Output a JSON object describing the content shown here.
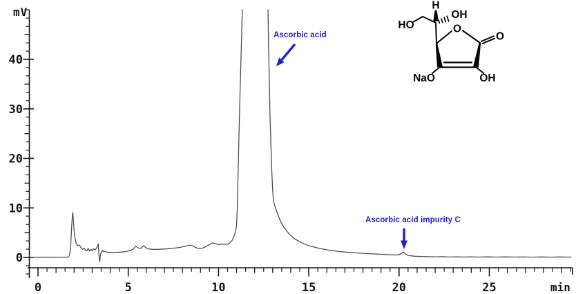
{
  "axes": {
    "y_unit": "mV",
    "x_unit": "min",
    "y_major_tick_labels": [
      "0",
      "10",
      "20",
      "30",
      "40"
    ],
    "x_major_tick_labels": [
      "0",
      "5",
      "10",
      "15",
      "20",
      "25"
    ]
  },
  "annotations": [
    {
      "text": "Ascorbic acid",
      "points_to_min": 12.9
    },
    {
      "text": "Ascorbic acid impurity C",
      "points_to_min": 20.2
    }
  ],
  "molecule": {
    "name": "sodium ascorbate",
    "labels": {
      "ho": "HO",
      "h": "H",
      "oh_top": "OH",
      "o_ring": "O",
      "o_carbonyl": "O",
      "nao": "NaO",
      "oh_bottom": "OH"
    }
  },
  "colors": {
    "annotation_blue": "#2020c8",
    "trace": "#4d4d4d",
    "axis": "#161616",
    "structure": "#050505",
    "background": "#ffffff"
  },
  "chart_data": {
    "type": "line",
    "title": "",
    "xlabel": "min",
    "ylabel": "mV",
    "x_range_min": [
      0,
      29.5
    ],
    "y_range_mV": [
      -3.3,
      50
    ],
    "x_minor_tick_step_min": 0.5,
    "y_labeled_tick_step_mV": 10,
    "grid": false,
    "legend": null,
    "peaks": [
      {
        "name": "Ascorbic acid",
        "retention_min": 12.0,
        "apex_mV": "off-scale (>50, clipped)"
      },
      {
        "name": "Ascorbic acid impurity C",
        "retention_min": 20.2,
        "apex_mV": 1.1
      },
      {
        "name": "unlabeled front peak",
        "retention_min": 1.9,
        "apex_mV": 9.0
      }
    ],
    "series": [
      {
        "name": "detector-signal",
        "units": {
          "x": "min",
          "y": "mV"
        },
        "points": [
          [
            -0.42,
            0.03
          ],
          [
            0.3,
            0.05
          ],
          [
            0.8,
            0.03
          ],
          [
            1.3,
            0.06
          ],
          [
            1.62,
            0.05
          ],
          [
            1.7,
            0.15
          ],
          [
            1.76,
            0.7
          ],
          [
            1.81,
            2.2
          ],
          [
            1.86,
            5.8
          ],
          [
            1.9,
            8.3
          ],
          [
            1.93,
            9.05
          ],
          [
            1.96,
            7.6
          ],
          [
            2.0,
            5.4
          ],
          [
            2.05,
            3.8
          ],
          [
            2.11,
            2.9
          ],
          [
            2.18,
            2.35
          ],
          [
            2.26,
            2.5
          ],
          [
            2.32,
            2.35
          ],
          [
            2.4,
            1.9
          ],
          [
            2.48,
            1.6
          ],
          [
            2.56,
            1.9
          ],
          [
            2.63,
            1.5
          ],
          [
            2.71,
            1.35
          ],
          [
            2.78,
            1.8
          ],
          [
            2.86,
            1.3
          ],
          [
            2.93,
            1.65
          ],
          [
            3.0,
            1.35
          ],
          [
            3.08,
            1.75
          ],
          [
            3.16,
            1.5
          ],
          [
            3.24,
            1.85
          ],
          [
            3.3,
            2.3
          ],
          [
            3.34,
            2.75
          ],
          [
            3.38,
            0.2
          ],
          [
            3.42,
            -0.88
          ],
          [
            3.46,
            0.5
          ],
          [
            3.51,
            1.05
          ],
          [
            3.57,
            1.4
          ],
          [
            3.63,
            1.15
          ],
          [
            3.69,
            1.3
          ],
          [
            3.8,
            1.08
          ],
          [
            4.0,
            1.0
          ],
          [
            4.3,
            1.02
          ],
          [
            4.6,
            1.08
          ],
          [
            4.9,
            1.2
          ],
          [
            5.1,
            1.4
          ],
          [
            5.27,
            1.65
          ],
          [
            5.43,
            2.3
          ],
          [
            5.56,
            1.9
          ],
          [
            5.7,
            1.82
          ],
          [
            5.85,
            2.4
          ],
          [
            5.97,
            1.95
          ],
          [
            6.12,
            1.72
          ],
          [
            6.4,
            1.62
          ],
          [
            6.7,
            1.65
          ],
          [
            7.0,
            1.7
          ],
          [
            7.3,
            1.78
          ],
          [
            7.6,
            1.9
          ],
          [
            7.9,
            2.05
          ],
          [
            8.2,
            2.3
          ],
          [
            8.45,
            2.5
          ],
          [
            8.62,
            2.2
          ],
          [
            8.84,
            1.85
          ],
          [
            9.05,
            1.8
          ],
          [
            9.25,
            2.1
          ],
          [
            9.45,
            2.5
          ],
          [
            9.68,
            2.92
          ],
          [
            9.85,
            2.75
          ],
          [
            10.0,
            2.62
          ],
          [
            10.2,
            2.68
          ],
          [
            10.4,
            2.7
          ],
          [
            10.56,
            2.68
          ],
          [
            10.75,
            3.4
          ],
          [
            10.86,
            4.3
          ],
          [
            10.94,
            5.2
          ],
          [
            11.0,
            6.5
          ],
          [
            11.04,
            10
          ],
          [
            11.08,
            16
          ],
          [
            11.13,
            24
          ],
          [
            11.19,
            33
          ],
          [
            11.26,
            42
          ],
          [
            11.33,
            52
          ],
          [
            12.73,
            52
          ],
          [
            12.77,
            43
          ],
          [
            12.81,
            36
          ],
          [
            12.85,
            29
          ],
          [
            12.9,
            23
          ],
          [
            12.95,
            17.5
          ],
          [
            13.0,
            13.5
          ],
          [
            13.04,
            11.4
          ],
          [
            13.14,
            10.2
          ],
          [
            13.27,
            8.8
          ],
          [
            13.45,
            7.15
          ],
          [
            13.64,
            6.0
          ],
          [
            13.9,
            4.8
          ],
          [
            14.22,
            3.76
          ],
          [
            14.6,
            2.97
          ],
          [
            14.98,
            2.4
          ],
          [
            15.5,
            1.9
          ],
          [
            16.0,
            1.53
          ],
          [
            16.65,
            1.2
          ],
          [
            17.4,
            0.97
          ],
          [
            18.17,
            0.78
          ],
          [
            18.93,
            0.64
          ],
          [
            19.57,
            0.55
          ],
          [
            19.9,
            0.5
          ],
          [
            20.02,
            0.58
          ],
          [
            20.12,
            0.8
          ],
          [
            20.24,
            1.07
          ],
          [
            20.36,
            0.72
          ],
          [
            20.5,
            0.42
          ],
          [
            20.68,
            0.3
          ],
          [
            20.9,
            0.24
          ],
          [
            21.23,
            0.18
          ],
          [
            21.6,
            0.16
          ],
          [
            22.0,
            0.12
          ],
          [
            22.4,
            0.15
          ],
          [
            22.8,
            0.09
          ],
          [
            23.2,
            0.13
          ],
          [
            23.6,
            0.08
          ],
          [
            24.0,
            0.12
          ],
          [
            24.4,
            0.07
          ],
          [
            24.9,
            0.11
          ],
          [
            25.4,
            0.07
          ],
          [
            25.9,
            0.11
          ],
          [
            26.4,
            0.07
          ],
          [
            26.9,
            0.1
          ],
          [
            27.4,
            0.06
          ],
          [
            27.9,
            0.1
          ],
          [
            28.4,
            0.06
          ],
          [
            28.9,
            0.1
          ],
          [
            29.3,
            0.07
          ],
          [
            29.55,
            0.08
          ]
        ]
      }
    ]
  }
}
